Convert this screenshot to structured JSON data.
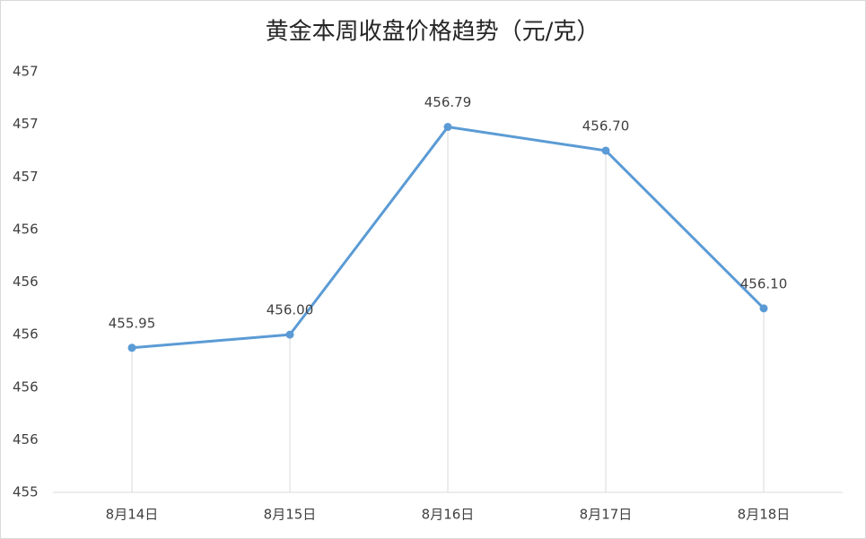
{
  "chart_data": {
    "type": "line",
    "title": "黄金本周收盘价格趋势（元/克）",
    "categories": [
      "8月14日",
      "8月15日",
      "8月16日",
      "8月17日",
      "8月18日"
    ],
    "series": [
      {
        "name": "收盘价格",
        "color": "#5b9bd5",
        "values": [
          455.95,
          456.0,
          456.79,
          456.7,
          456.1
        ],
        "value_labels": [
          "455.95",
          "456.00",
          "456.79",
          "456.70",
          "456.10"
        ]
      }
    ],
    "ylim": [
      455.4,
      457.0
    ],
    "yticks": [
      {
        "value": 455.4,
        "label": "455"
      },
      {
        "value": 455.6,
        "label": "456"
      },
      {
        "value": 455.8,
        "label": "456"
      },
      {
        "value": 456.0,
        "label": "456"
      },
      {
        "value": 456.2,
        "label": "456"
      },
      {
        "value": 456.4,
        "label": "456"
      },
      {
        "value": 456.6,
        "label": "457"
      },
      {
        "value": 456.8,
        "label": "457"
      },
      {
        "value": 457.0,
        "label": "457"
      }
    ],
    "drop_lines": true
  }
}
